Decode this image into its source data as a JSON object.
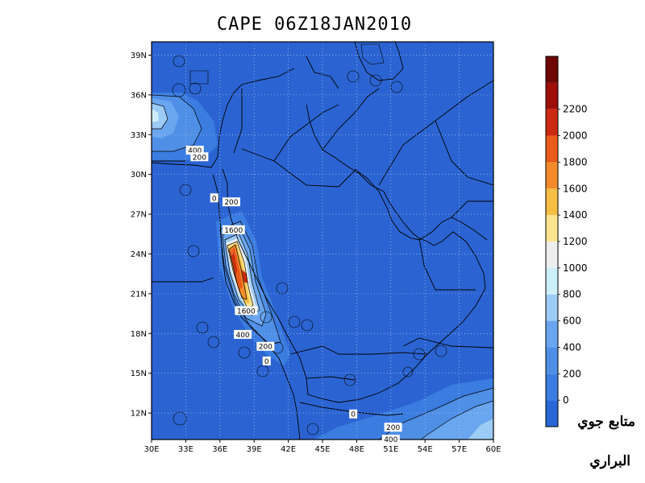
{
  "title": "CAPE 06Z18JAN2010",
  "credits": [
    "متابع جوي",
    "البراري"
  ],
  "map": {
    "lon_range": [
      30,
      60
    ],
    "lat_range": [
      10,
      40
    ],
    "x_ticks": [
      "30E",
      "33E",
      "36E",
      "39E",
      "42E",
      "45E",
      "48E",
      "51E",
      "54E",
      "57E",
      "60E"
    ],
    "y_ticks": [
      "12N",
      "15N",
      "18N",
      "21N",
      "24N",
      "27N",
      "30N",
      "33N",
      "36N",
      "39N"
    ],
    "grid": "dotted",
    "contour_labels": [
      {
        "text": "400",
        "lon": 33.8,
        "lat": 31.8
      },
      {
        "text": "200",
        "lon": 34.2,
        "lat": 31.3
      },
      {
        "text": "0",
        "lon": 35.5,
        "lat": 28.2
      },
      {
        "text": "200",
        "lon": 37.0,
        "lat": 27.9
      },
      {
        "text": "1600",
        "lon": 37.2,
        "lat": 25.8
      },
      {
        "text": "1600",
        "lon": 38.3,
        "lat": 19.7
      },
      {
        "text": "400",
        "lon": 38.0,
        "lat": 17.9
      },
      {
        "text": "200",
        "lon": 40.0,
        "lat": 17.0
      },
      {
        "text": "0",
        "lon": 40.1,
        "lat": 15.9
      },
      {
        "text": "0",
        "lon": 47.7,
        "lat": 11.9
      },
      {
        "text": "200",
        "lon": 51.2,
        "lat": 10.9
      },
      {
        "text": "400",
        "lon": 51.0,
        "lat": 10.0
      }
    ]
  },
  "colorbar": {
    "labels": [
      "0",
      "200",
      "400",
      "600",
      "800",
      "1000",
      "1200",
      "1400",
      "1600",
      "1800",
      "2000",
      "2200"
    ],
    "colors": [
      "#2a67d6",
      "#3b7ce0",
      "#4f8fe6",
      "#6aa6ef",
      "#9ccbf6",
      "#cdeefb",
      "#eeeeee",
      "#fbe58c",
      "#f7be45",
      "#f48b2a",
      "#ea5a1a",
      "#cc2a12",
      "#9e0f0a",
      "#6e0705"
    ]
  }
}
